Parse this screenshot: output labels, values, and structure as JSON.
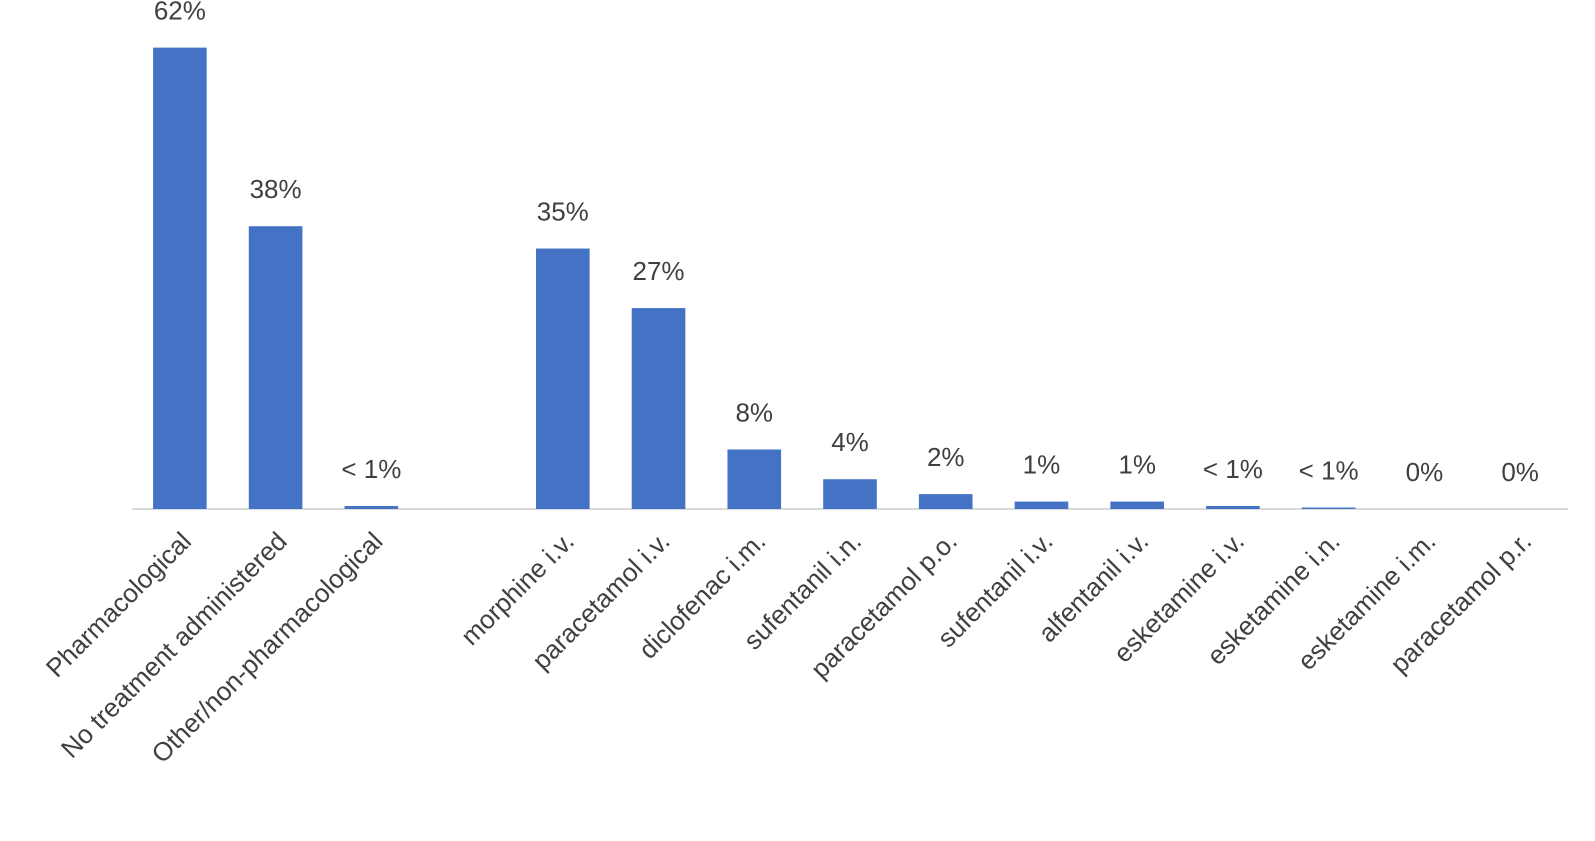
{
  "chart_data": {
    "type": "bar",
    "categories": [
      "Pharmacological",
      "No treatment administered",
      "Other/non-pharmacological",
      null,
      "morphine i.v.",
      "paracetamol i.v.",
      "diclofenac i.m.",
      "sufentanil i.n.",
      "paracetamol p.o.",
      "sufentanil i.v.",
      "alfentanil i.v.",
      "esketamine i.v.",
      "esketamine i.n.",
      "esketamine i.m.",
      "paracetamol p.r."
    ],
    "values": [
      62,
      38,
      0.4,
      null,
      35,
      27,
      8,
      4,
      2,
      1,
      1,
      0.4,
      0.2,
      0,
      0
    ],
    "value_labels": [
      "62%",
      "38%",
      "< 1%",
      null,
      "35%",
      "27%",
      "8%",
      "4%",
      "2%",
      "1%",
      "1%",
      "< 1%",
      "< 1%",
      "0%",
      "0%"
    ],
    "color": "#4472c4",
    "ylim": [
      0,
      68.4
    ],
    "grid": false
  }
}
